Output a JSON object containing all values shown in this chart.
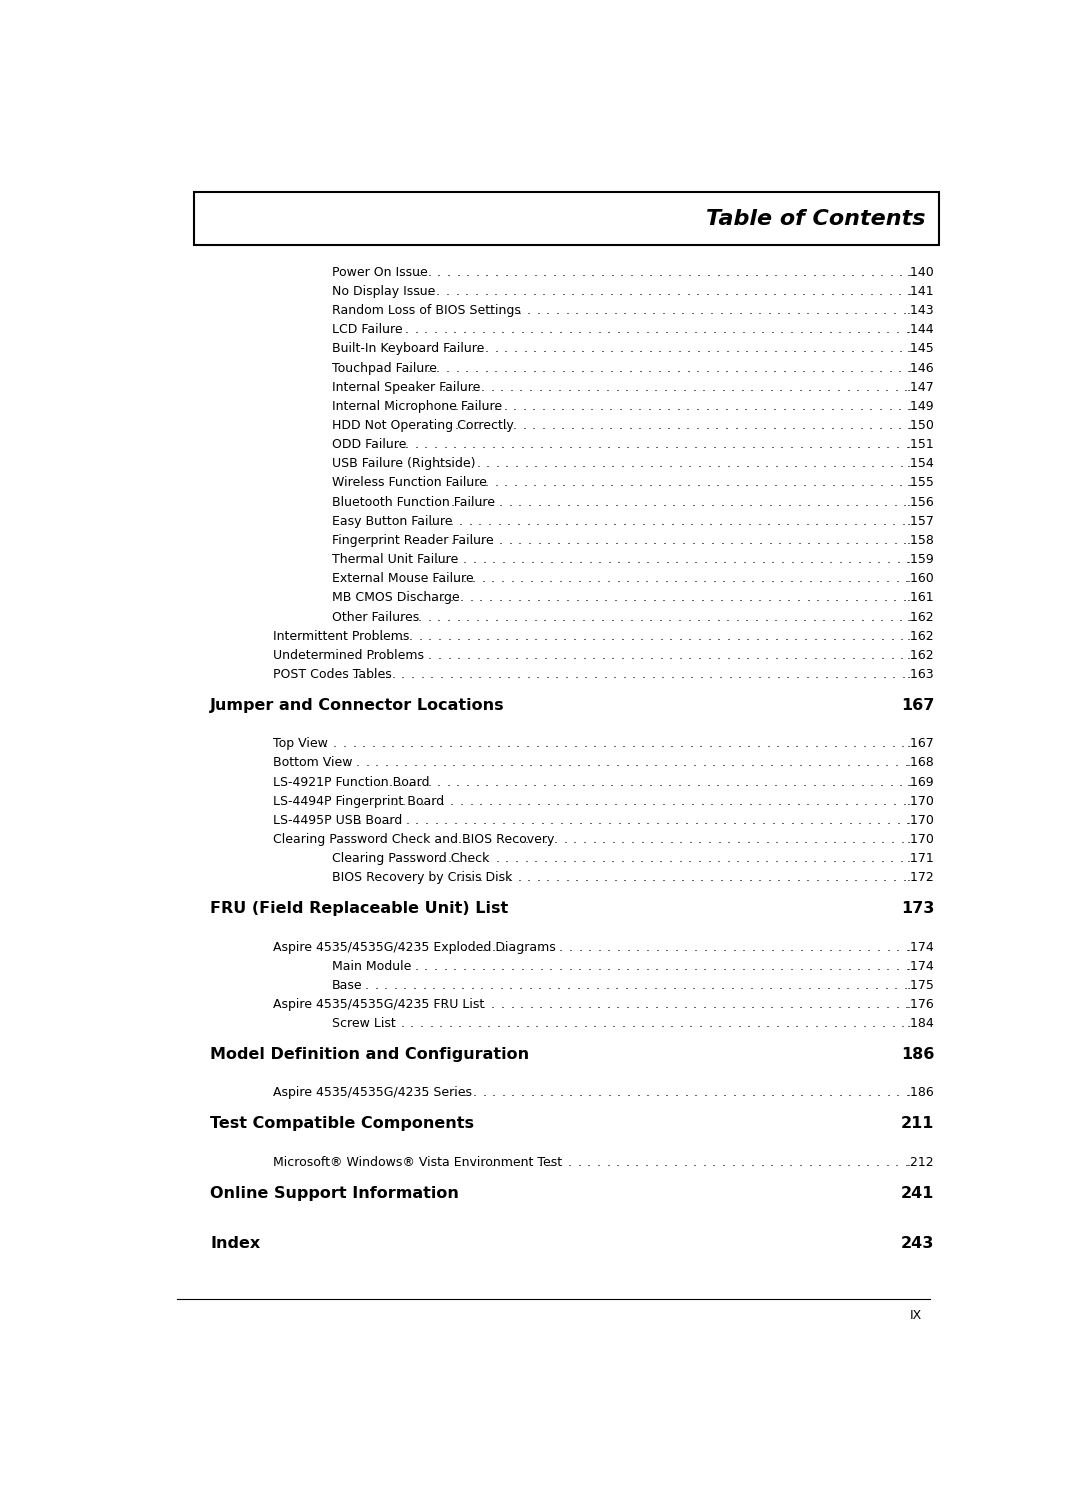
{
  "title": "Table of Contents",
  "bg_color": "#ffffff",
  "title_box_border": "#000000",
  "page_width": 10.8,
  "page_height": 15.12,
  "footer_text": "IX",
  "entries": [
    {
      "indent": 2,
      "text": "Power On Issue",
      "page": "140",
      "bold": false,
      "section": false
    },
    {
      "indent": 2,
      "text": "No Display Issue",
      "page": "141",
      "bold": false,
      "section": false
    },
    {
      "indent": 2,
      "text": "Random Loss of BIOS Settings",
      "page": "143",
      "bold": false,
      "section": false
    },
    {
      "indent": 2,
      "text": "LCD Failure",
      "page": "144",
      "bold": false,
      "section": false
    },
    {
      "indent": 2,
      "text": "Built-In Keyboard Failure",
      "page": "145",
      "bold": false,
      "section": false
    },
    {
      "indent": 2,
      "text": "Touchpad Failure",
      "page": "146",
      "bold": false,
      "section": false
    },
    {
      "indent": 2,
      "text": "Internal Speaker Failure",
      "page": "147",
      "bold": false,
      "section": false
    },
    {
      "indent": 2,
      "text": "Internal Microphone Failure",
      "page": "149",
      "bold": false,
      "section": false
    },
    {
      "indent": 2,
      "text": "HDD Not Operating Correctly",
      "page": "150",
      "bold": false,
      "section": false
    },
    {
      "indent": 2,
      "text": "ODD Failure",
      "page": "151",
      "bold": false,
      "section": false
    },
    {
      "indent": 2,
      "text": "USB Failure (Rightside)",
      "page": "154",
      "bold": false,
      "section": false
    },
    {
      "indent": 2,
      "text": "Wireless Function Failure",
      "page": "155",
      "bold": false,
      "section": false
    },
    {
      "indent": 2,
      "text": "Bluetooth Function Failure",
      "page": "156",
      "bold": false,
      "section": false
    },
    {
      "indent": 2,
      "text": "Easy Button Failure",
      "page": "157",
      "bold": false,
      "section": false
    },
    {
      "indent": 2,
      "text": "Fingerprint Reader Failure",
      "page": "158",
      "bold": false,
      "section": false
    },
    {
      "indent": 2,
      "text": "Thermal Unit Failure",
      "page": "159",
      "bold": false,
      "section": false
    },
    {
      "indent": 2,
      "text": "External Mouse Failure",
      "page": "160",
      "bold": false,
      "section": false
    },
    {
      "indent": 2,
      "text": "MB CMOS Discharge",
      "page": "161",
      "bold": false,
      "section": false
    },
    {
      "indent": 2,
      "text": "Other Failures",
      "page": "162",
      "bold": false,
      "section": false
    },
    {
      "indent": 1,
      "text": "Intermittent Problems",
      "page": "162",
      "bold": false,
      "section": false
    },
    {
      "indent": 1,
      "text": "Undetermined Problems",
      "page": "162",
      "bold": false,
      "section": false
    },
    {
      "indent": 1,
      "text": "POST Codes Tables",
      "page": "163",
      "bold": false,
      "section": false
    },
    {
      "indent": 0,
      "text": "Jumper and Connector Locations",
      "page": "167",
      "bold": true,
      "section": true
    },
    {
      "indent": 1,
      "text": "Top View",
      "page": "167",
      "bold": false,
      "section": false
    },
    {
      "indent": 1,
      "text": "Bottom View",
      "page": "168",
      "bold": false,
      "section": false
    },
    {
      "indent": 1,
      "text": "LS-4921P Function Board",
      "page": "169",
      "bold": false,
      "section": false
    },
    {
      "indent": 1,
      "text": "LS-4494P Fingerprint Board",
      "page": "170",
      "bold": false,
      "section": false
    },
    {
      "indent": 1,
      "text": "LS-4495P USB Board",
      "page": "170",
      "bold": false,
      "section": false
    },
    {
      "indent": 1,
      "text": "Clearing Password Check and BIOS Recovery",
      "page": "170",
      "bold": false,
      "section": false
    },
    {
      "indent": 2,
      "text": "Clearing Password Check",
      "page": "171",
      "bold": false,
      "section": false
    },
    {
      "indent": 2,
      "text": "BIOS Recovery by Crisis Disk",
      "page": "172",
      "bold": false,
      "section": false
    },
    {
      "indent": 0,
      "text": "FRU (Field Replaceable Unit) List",
      "page": "173",
      "bold": true,
      "section": true
    },
    {
      "indent": 1,
      "text": "Aspire 4535/4535G/4235 Exploded Diagrams",
      "page": "174",
      "bold": false,
      "section": false
    },
    {
      "indent": 2,
      "text": "Main Module",
      "page": "174",
      "bold": false,
      "section": false
    },
    {
      "indent": 2,
      "text": "Base",
      "page": "175",
      "bold": false,
      "section": false
    },
    {
      "indent": 1,
      "text": "Aspire 4535/4535G/4235 FRU List",
      "page": "176",
      "bold": false,
      "section": false
    },
    {
      "indent": 2,
      "text": "Screw List",
      "page": "184",
      "bold": false,
      "section": false
    },
    {
      "indent": 0,
      "text": "Model Definition and Configuration",
      "page": "186",
      "bold": true,
      "section": true
    },
    {
      "indent": 1,
      "text": "Aspire 4535/4535G/4235 Series",
      "page": "186",
      "bold": false,
      "section": false
    },
    {
      "indent": 0,
      "text": "Test Compatible Components",
      "page": "211",
      "bold": true,
      "section": true
    },
    {
      "indent": 1,
      "text": "Microsoft® Windows® Vista Environment Test",
      "page": "212",
      "bold": false,
      "section": false
    },
    {
      "indent": 0,
      "text": "Online Support Information",
      "page": "241",
      "bold": true,
      "section": true
    },
    {
      "indent": 0,
      "text": "Index",
      "page": "243",
      "bold": true,
      "section": true
    }
  ]
}
